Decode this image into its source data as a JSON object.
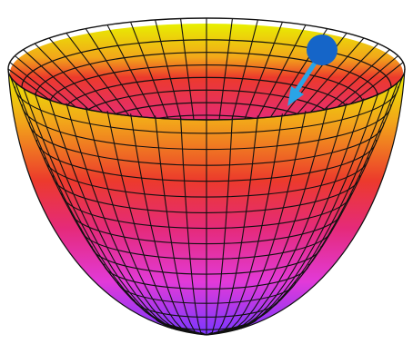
{
  "figure": {
    "subject": "paraboloid-bowl-with-ball",
    "colors": {
      "background": "#ffffff",
      "mesh_line": "#111111",
      "gradient": [
        "#e8f000",
        "#f2a51a",
        "#ec3a2c",
        "#e52a7a",
        "#e23ad8",
        "#7a36ff"
      ],
      "ball": "#1565c8",
      "arrow": "#2aa4e6"
    },
    "ball": {
      "shape": "circle"
    },
    "arrow": {
      "direction": "down-left",
      "style": "arrow"
    }
  }
}
